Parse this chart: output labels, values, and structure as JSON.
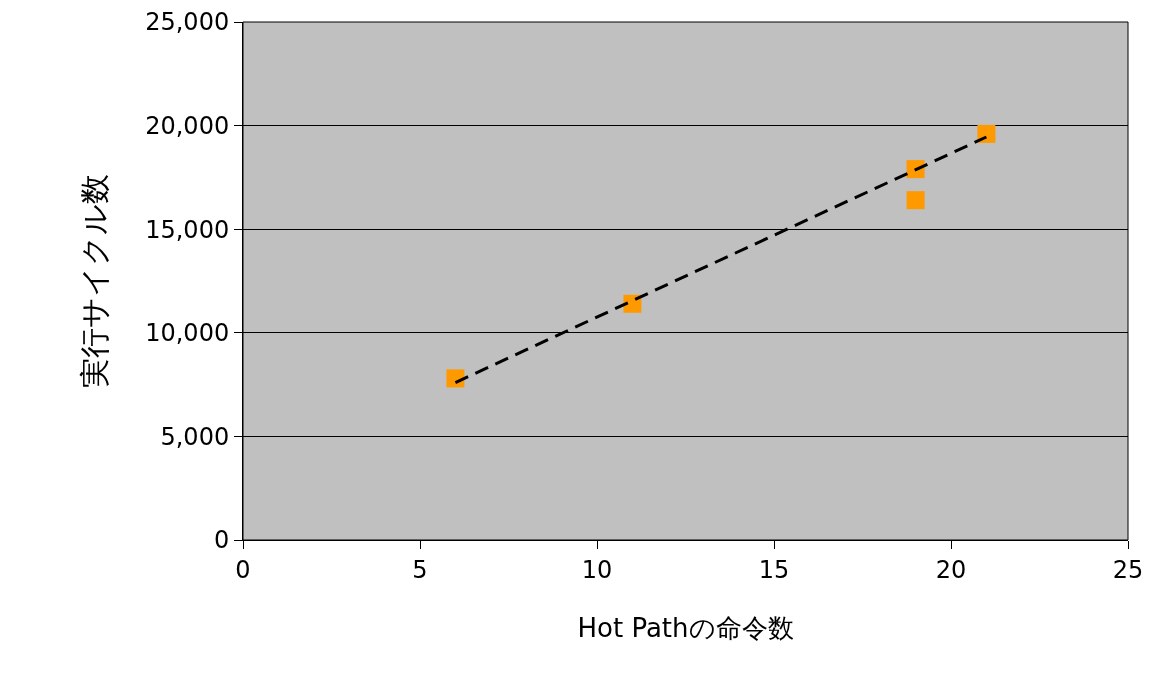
{
  "chart_data": {
    "type": "scatter",
    "xlabel": "Hot Pathの命令数",
    "ylabel": "実行サイクル数",
    "xlim": [
      0,
      25
    ],
    "xticks": [
      0,
      5,
      10,
      15,
      20,
      25
    ],
    "ylim": [
      0,
      25000
    ],
    "yticks": [
      0,
      {
        "value": 5000,
        "label": "5,000"
      },
      {
        "value": 10000,
        "label": "10,000"
      },
      {
        "value": 15000,
        "label": "15,000"
      },
      {
        "value": 20000,
        "label": "20,000"
      },
      {
        "value": 25000,
        "label": "25,000"
      }
    ],
    "grid": "y",
    "marker": "square",
    "series": [
      {
        "color": "#ff9900",
        "x": [
          6,
          11,
          19,
          19,
          21
        ],
        "values": [
          7800,
          11400,
          17900,
          16400,
          19600
        ]
      },
      {
        "type": "line",
        "color": "#000000",
        "line_style": "dashed",
        "marker": "none",
        "x": [
          6,
          21
        ],
        "values": [
          7600,
          19450
        ]
      }
    ]
  }
}
